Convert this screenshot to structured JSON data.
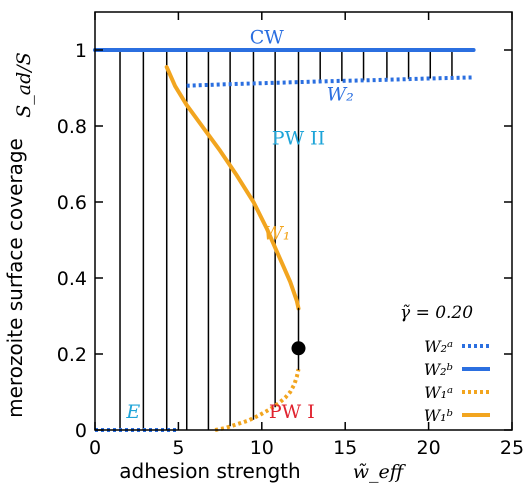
{
  "chart_data": {
    "type": "line",
    "xlabel": "adhesion strength",
    "xlabel_symbol": "w̃_eff",
    "ylabel": "merozoite surface coverage",
    "ylabel_symbol": "S_ad/S",
    "xlim": [
      0,
      25
    ],
    "ylim": [
      0,
      1.1
    ],
    "x_ticks": [
      0,
      5,
      10,
      15,
      20,
      25
    ],
    "y_ticks": [
      0,
      0.2,
      0.4,
      0.6,
      0.8,
      1
    ],
    "x_tick_labels": [
      "0",
      "5",
      "10",
      "15",
      "20",
      "25"
    ],
    "y_tick_labels": [
      "0",
      "0.2",
      "0.4",
      "0.6",
      "0.8",
      "1"
    ],
    "legend_title": "γ̃ = 0.20",
    "legend_placement": "bottom-right",
    "region_labels": [
      {
        "text": "CW",
        "x": 10.3,
        "y": 1.035,
        "color": "#2b6fe0",
        "italic": false
      },
      {
        "text": "PW II",
        "x": 12.2,
        "y": 0.77,
        "color": "#1ea4d8",
        "italic": false
      },
      {
        "text": "PW I",
        "x": 11.8,
        "y": 0.05,
        "color": "#e0232f",
        "italic": false
      },
      {
        "text": "E",
        "x": 2.3,
        "y": 0.05,
        "color": "#1ea4d8",
        "italic": true
      },
      {
        "text": "W₂",
        "x": 14.7,
        "y": 0.885,
        "color": "#2b6fe0",
        "italic": true
      },
      {
        "text": "W₁",
        "x": 10.9,
        "y": 0.52,
        "color": "#f2a51f",
        "italic": true
      }
    ],
    "series": [
      {
        "name": "W₂ᵃ",
        "color": "#2b6fe0",
        "style": "dotted",
        "x": [
          0,
          1,
          2,
          3,
          4,
          4.9
        ],
        "y": [
          0,
          0,
          0,
          0,
          0,
          0
        ]
      },
      {
        "name": "W₂ᵃ",
        "color": "#2b6fe0",
        "style": "dotted",
        "x": [
          5.5,
          8,
          11,
          14,
          17,
          20,
          22.7
        ],
        "y": [
          0.906,
          0.91,
          0.914,
          0.918,
          0.921,
          0.925,
          0.928
        ]
      },
      {
        "name": "W₂ᵇ",
        "color": "#2b6fe0",
        "style": "solid",
        "x": [
          0,
          5,
          10,
          15,
          20,
          22.7
        ],
        "y": [
          1,
          1,
          1,
          1,
          1,
          1
        ]
      },
      {
        "name": "W₁ᵃ",
        "color": "#f2a51f",
        "style": "dotted",
        "x": [
          7.2,
          7.8,
          8.5,
          9.2,
          9.9,
          10.5,
          11.0,
          11.4,
          11.7,
          11.95,
          12.1,
          12.2
        ],
        "y": [
          0,
          0.005,
          0.015,
          0.025,
          0.04,
          0.055,
          0.07,
          0.085,
          0.1,
          0.12,
          0.14,
          0.16
        ]
      },
      {
        "name": "W₁ᵇ",
        "color": "#f2a51f",
        "style": "solid",
        "x": [
          4.3,
          4.8,
          5.5,
          6.5,
          7.5,
          8.5,
          9.5,
          10.3,
          10.9,
          11.3,
          11.7,
          12.1,
          12.2
        ],
        "y": [
          0.955,
          0.905,
          0.855,
          0.795,
          0.735,
          0.67,
          0.6,
          0.53,
          0.47,
          0.43,
          0.39,
          0.34,
          0.32
        ]
      },
      {
        "name": "",
        "color": "#000000",
        "style": "solid",
        "x": [
          12.2,
          12.2
        ],
        "y": [
          0.16,
          0.32
        ]
      }
    ],
    "critical_point": {
      "x": 12.2,
      "y": 0.215
    },
    "tie_lines": [
      {
        "x": 1.5,
        "y_low": 0,
        "y_high": 1
      },
      {
        "x": 2.9,
        "y_low": 0,
        "y_high": 1
      },
      {
        "x": 4.3,
        "y_low": 0,
        "y_high": 1
      },
      {
        "x": 5.5,
        "y_low": 0,
        "y_high": 1
      },
      {
        "x": 6.8,
        "y_low": 0,
        "y_high": 1
      },
      {
        "x": 8.1,
        "y_low": 0.01,
        "y_high": 1
      },
      {
        "x": 9.5,
        "y_low": 0.027,
        "y_high": 1
      },
      {
        "x": 10.8,
        "y_low": 0.06,
        "y_high": 1
      },
      {
        "x": 12.2,
        "y_low": 0.32,
        "y_high": 1
      },
      {
        "x": 13.5,
        "y_low": 0.916,
        "y_high": 1
      },
      {
        "x": 14.8,
        "y_low": 0.918,
        "y_high": 1
      },
      {
        "x": 16.1,
        "y_low": 0.92,
        "y_high": 1
      },
      {
        "x": 17.5,
        "y_low": 0.922,
        "y_high": 1
      },
      {
        "x": 18.8,
        "y_low": 0.924,
        "y_high": 1
      },
      {
        "x": 20.1,
        "y_low": 0.925,
        "y_high": 1
      },
      {
        "x": 21.4,
        "y_low": 0.927,
        "y_high": 1
      }
    ],
    "legend": [
      {
        "label": "W₂ᵃ",
        "color": "#2b6fe0",
        "style": "dotted"
      },
      {
        "label": "W₂ᵇ",
        "color": "#2b6fe0",
        "style": "solid"
      },
      {
        "label": "W₁ᵃ",
        "color": "#f2a51f",
        "style": "dotted"
      },
      {
        "label": "W₁ᵇ",
        "color": "#f2a51f",
        "style": "solid"
      }
    ]
  }
}
